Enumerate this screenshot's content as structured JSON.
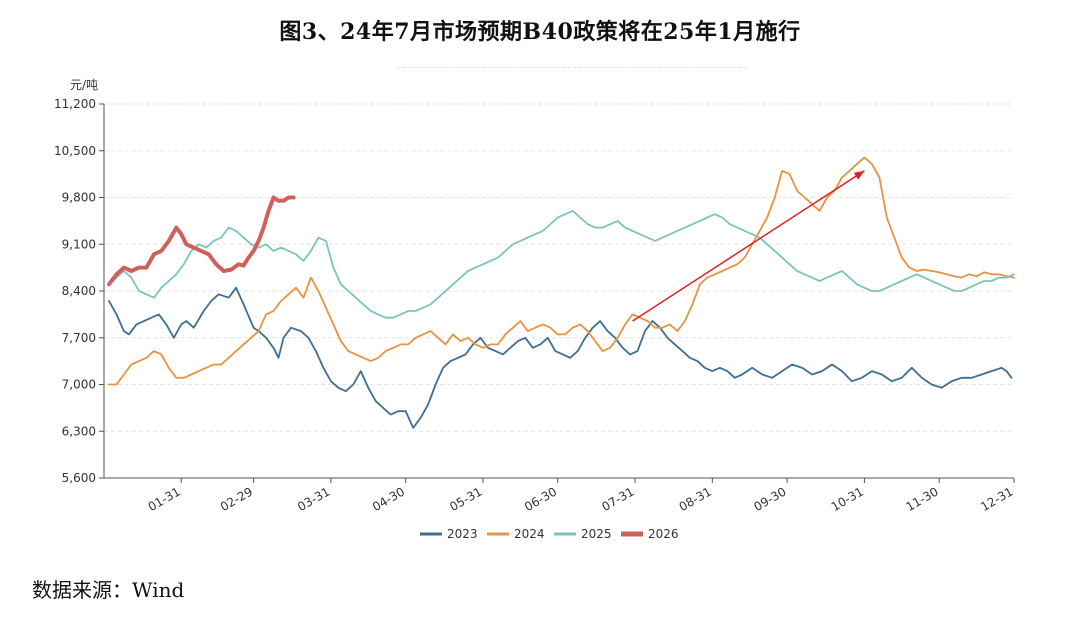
{
  "header": {
    "title": "图3、24年7月市场预期B40政策将在25年1月施行"
  },
  "footer": {
    "source": "数据来源：Wind"
  },
  "chart_data": {
    "type": "line",
    "ylabel": "元/吨",
    "ylim": [
      5600,
      11200
    ],
    "yticks": [
      "5,600",
      "6,300",
      "7,000",
      "7,700",
      "8,400",
      "9,100",
      "9,800",
      "10,500",
      "11,200"
    ],
    "ytick_values": [
      5600,
      6300,
      7000,
      7700,
      8400,
      9100,
      9800,
      10500,
      11200
    ],
    "xlim_day": [
      0,
      365
    ],
    "xticks": [
      "01-31",
      "02-29",
      "03-31",
      "04-30",
      "05-31",
      "06-30",
      "07-31",
      "08-31",
      "09-30",
      "10-31",
      "11-30",
      "12-31"
    ],
    "xtick_days": [
      31,
      60,
      91,
      121,
      152,
      182,
      213,
      244,
      274,
      305,
      335,
      366
    ],
    "grid": true,
    "legend_position": "bottom-center",
    "series": [
      {
        "name": "2023",
        "color": "#3d6f94",
        "x": [
          2,
          5,
          8,
          10,
          13,
          16,
          19,
          22,
          25,
          28,
          31,
          33,
          36,
          40,
          43,
          46,
          50,
          53,
          56,
          60,
          62,
          65,
          68,
          70,
          72,
          75,
          79,
          82,
          85,
          88,
          91,
          94,
          97,
          100,
          103,
          106,
          109,
          112,
          115,
          118,
          121,
          124,
          127,
          130,
          133,
          136,
          139,
          142,
          145,
          148,
          151,
          154,
          157,
          160,
          163,
          166,
          169,
          172,
          175,
          178,
          181,
          184,
          187,
          190,
          193,
          196,
          199,
          202,
          205,
          208,
          211,
          214,
          217,
          220,
          223,
          226,
          229,
          232,
          235,
          238,
          241,
          244,
          247,
          250,
          253,
          256,
          260,
          264,
          268,
          272,
          276,
          280,
          284,
          288,
          292,
          296,
          300,
          304,
          308,
          312,
          316,
          320,
          324,
          328,
          332,
          336,
          340,
          344,
          348,
          352,
          356,
          360,
          362,
          364
        ],
        "y": [
          8250,
          8050,
          7800,
          7750,
          7900,
          7950,
          8000,
          8050,
          7900,
          7700,
          7900,
          7950,
          7850,
          8100,
          8250,
          8350,
          8300,
          8450,
          8200,
          7850,
          7800,
          7700,
          7550,
          7400,
          7700,
          7850,
          7800,
          7700,
          7500,
          7250,
          7050,
          6950,
          6900,
          7000,
          7200,
          6950,
          6750,
          6650,
          6550,
          6600,
          6600,
          6350,
          6500,
          6700,
          7000,
          7250,
          7350,
          7400,
          7450,
          7600,
          7700,
          7550,
          7500,
          7450,
          7550,
          7650,
          7700,
          7550,
          7600,
          7700,
          7500,
          7450,
          7400,
          7500,
          7700,
          7850,
          7950,
          7800,
          7700,
          7550,
          7450,
          7500,
          7800,
          7950,
          7850,
          7700,
          7600,
          7500,
          7400,
          7350,
          7250,
          7200,
          7250,
          7200,
          7100,
          7150,
          7250,
          7150,
          7100,
          7200,
          7300,
          7250,
          7150,
          7200,
          7300,
          7200,
          7050,
          7100,
          7200,
          7150,
          7050,
          7100,
          7250,
          7100,
          7000,
          6950,
          7050,
          7100,
          7100,
          7150,
          7200,
          7250,
          7200,
          7100
        ]
      },
      {
        "name": "2024",
        "color": "#e8933f",
        "x": [
          2,
          5,
          8,
          11,
          14,
          17,
          20,
          23,
          26,
          29,
          32,
          35,
          38,
          41,
          44,
          47,
          50,
          53,
          56,
          59,
          62,
          65,
          68,
          71,
          74,
          77,
          80,
          83,
          86,
          89,
          92,
          95,
          98,
          101,
          104,
          107,
          110,
          113,
          116,
          119,
          122,
          125,
          128,
          131,
          134,
          137,
          140,
          143,
          146,
          149,
          152,
          155,
          158,
          161,
          164,
          167,
          170,
          173,
          176,
          179,
          182,
          185,
          188,
          191,
          194,
          197,
          200,
          203,
          206,
          209,
          212,
          215,
          218,
          221,
          224,
          227,
          230,
          233,
          236,
          239,
          242,
          245,
          248,
          251,
          254,
          257,
          260,
          263,
          266,
          269,
          272,
          275,
          278,
          281,
          284,
          287,
          290,
          293,
          296,
          299,
          302,
          305,
          308,
          311,
          314,
          317,
          320,
          323,
          326,
          329,
          332,
          335,
          338,
          341,
          344,
          347,
          350,
          353,
          356,
          359,
          362,
          365
        ],
        "y": [
          7000,
          7000,
          7150,
          7300,
          7350,
          7400,
          7500,
          7450,
          7250,
          7100,
          7100,
          7150,
          7200,
          7250,
          7300,
          7300,
          7400,
          7500,
          7600,
          7700,
          7800,
          8050,
          8100,
          8250,
          8350,
          8450,
          8300,
          8600,
          8400,
          8150,
          7900,
          7650,
          7500,
          7450,
          7400,
          7350,
          7400,
          7500,
          7550,
          7600,
          7600,
          7700,
          7750,
          7800,
          7700,
          7600,
          7750,
          7650,
          7700,
          7600,
          7550,
          7600,
          7600,
          7750,
          7850,
          7950,
          7800,
          7850,
          7900,
          7850,
          7750,
          7750,
          7850,
          7900,
          7800,
          7650,
          7500,
          7550,
          7700,
          7900,
          8050,
          8000,
          7950,
          7850,
          7850,
          7900,
          7800,
          7950,
          8200,
          8500,
          8600,
          8650,
          8700,
          8750,
          8800,
          8900,
          9100,
          9300,
          9500,
          9800,
          10200,
          10150,
          9900,
          9800,
          9700,
          9600,
          9800,
          9900,
          10100,
          10200,
          10300,
          10400,
          10300,
          10100,
          9500,
          9200,
          8900,
          8750,
          8700,
          8720,
          8700,
          8680,
          8650,
          8620,
          8600,
          8650,
          8620,
          8680,
          8650,
          8650,
          8620,
          8600
        ]
      },
      {
        "name": "2025",
        "color": "#7cc3bd",
        "x": [
          2,
          5,
          8,
          11,
          14,
          17,
          20,
          23,
          26,
          29,
          32,
          35,
          38,
          41,
          44,
          47,
          50,
          53,
          56,
          59,
          62,
          65,
          68,
          71,
          74,
          77,
          80,
          83,
          86,
          89,
          92,
          95,
          98,
          101,
          104,
          107,
          110,
          113,
          116,
          119,
          122,
          125,
          128,
          131,
          134,
          137,
          140,
          143,
          146,
          149,
          152,
          155,
          158,
          161,
          164,
          167,
          170,
          173,
          176,
          179,
          182,
          185,
          188,
          191,
          194,
          197,
          200,
          203,
          206,
          209,
          212,
          215,
          218,
          221,
          224,
          227,
          230,
          233,
          236,
          239,
          242,
          245,
          248,
          251,
          254,
          257,
          260,
          263,
          266,
          269,
          272,
          275,
          278,
          281,
          284,
          287,
          290,
          293,
          296,
          299,
          302,
          305,
          308,
          311,
          314,
          317,
          320,
          323,
          326,
          329,
          332,
          335,
          338,
          341,
          344,
          347,
          350,
          353,
          356,
          359,
          362,
          365
        ],
        "y": [
          8500,
          8600,
          8700,
          8600,
          8400,
          8350,
          8300,
          8450,
          8550,
          8650,
          8800,
          9000,
          9100,
          9050,
          9150,
          9200,
          9350,
          9300,
          9200,
          9100,
          9050,
          9100,
          9000,
          9050,
          9000,
          8950,
          8850,
          9000,
          9200,
          9150,
          8750,
          8500,
          8400,
          8300,
          8200,
          8100,
          8050,
          8000,
          8000,
          8050,
          8100,
          8100,
          8150,
          8200,
          8300,
          8400,
          8500,
          8600,
          8700,
          8750,
          8800,
          8850,
          8900,
          9000,
          9100,
          9150,
          9200,
          9250,
          9300,
          9400,
          9500,
          9550,
          9600,
          9500,
          9400,
          9350,
          9350,
          9400,
          9450,
          9350,
          9300,
          9250,
          9200,
          9150,
          9200,
          9250,
          9300,
          9350,
          9400,
          9450,
          9500,
          9550,
          9500,
          9400,
          9350,
          9300,
          9250,
          9200,
          9100,
          9000,
          8900,
          8800,
          8700,
          8650,
          8600,
          8550,
          8600,
          8650,
          8700,
          8600,
          8500,
          8450,
          8400,
          8400,
          8450,
          8500,
          8550,
          8600,
          8650,
          8600,
          8550,
          8500,
          8450,
          8400,
          8400,
          8450,
          8500,
          8550,
          8550,
          8600,
          8600,
          8650
        ]
      },
      {
        "name": "2026",
        "color": "#d0605c",
        "x": [
          2,
          5,
          8,
          11,
          14,
          17,
          20,
          23,
          26,
          29,
          31,
          33,
          36,
          39,
          42,
          45,
          48,
          51,
          54,
          56,
          58,
          60,
          62,
          64,
          66,
          68,
          70,
          72,
          74,
          76
        ],
        "y": [
          8500,
          8650,
          8750,
          8700,
          8750,
          8750,
          8950,
          9000,
          9150,
          9350,
          9250,
          9100,
          9050,
          9000,
          8950,
          8800,
          8700,
          8720,
          8800,
          8780,
          8900,
          9000,
          9150,
          9350,
          9600,
          9800,
          9750,
          9750,
          9800,
          9800
        ]
      }
    ],
    "annotations": [
      {
        "type": "arrow",
        "color": "#e02020",
        "from": [
          212,
          7950
        ],
        "to": [
          305,
          10200
        ]
      }
    ]
  }
}
